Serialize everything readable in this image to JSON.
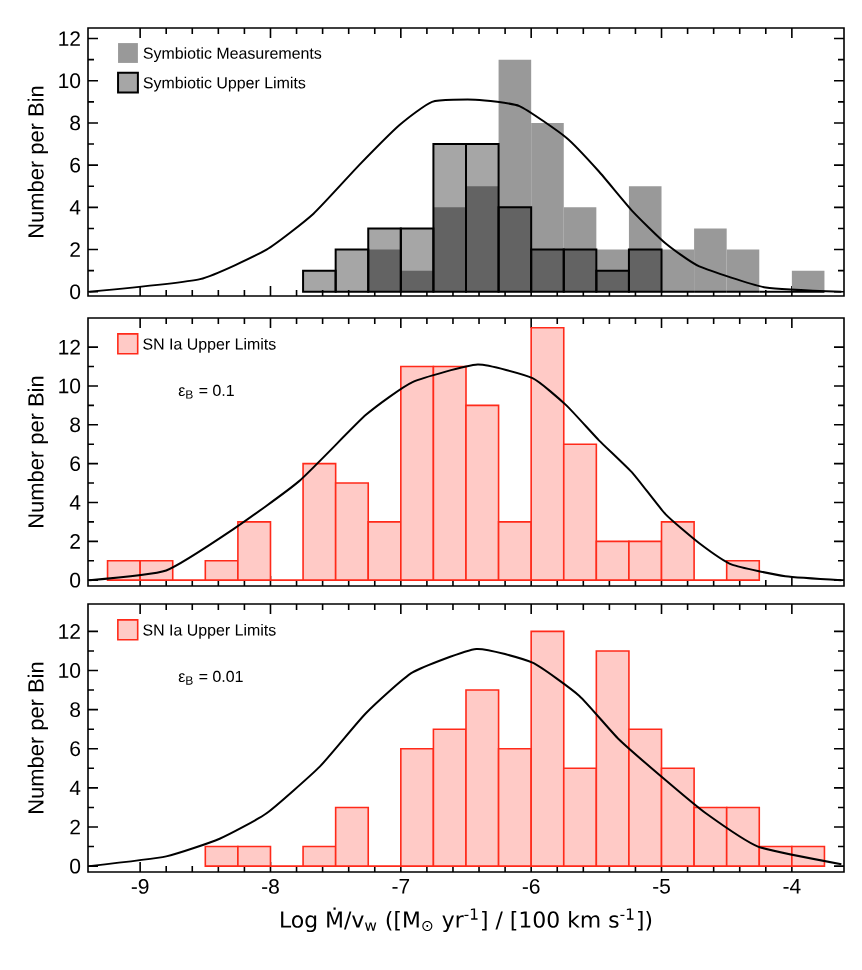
{
  "chart_data": [
    {
      "type": "histogram",
      "ylabel": "Number per Bin",
      "xlim": [
        -9.4,
        -3.6
      ],
      "ylim": [
        -0.2,
        12.5
      ],
      "xticks": [
        -9,
        -8,
        -7,
        -6,
        -5,
        -4
      ],
      "yticks": [
        0,
        2,
        4,
        6,
        8,
        10,
        12
      ],
      "tick_labels": "y",
      "legend": "top left",
      "bins": [
        -7.75,
        -7.5,
        -7.25,
        -7,
        -6.75,
        -6.5,
        -6.25,
        -6,
        -5.75,
        -5.5,
        -5.25,
        -5,
        -4.75,
        -4.5,
        -4.25,
        -4,
        -3.75
      ],
      "series": [
        {
          "name": "Symbiotic Measurements",
          "color": "#999999",
          "values": [
            0,
            0,
            2,
            1,
            4,
            5,
            11,
            8,
            4,
            2,
            5,
            2,
            3,
            2,
            0,
            1
          ]
        },
        {
          "name": "Symbiotic Upper Limits",
          "color": "#000000",
          "values": [
            1,
            2,
            3,
            3,
            7,
            7,
            4,
            2,
            2,
            1,
            2,
            0,
            0,
            0,
            0,
            0
          ]
        },
        {
          "type": "line",
          "color": "#000000",
          "x": [
            -9.39,
            -8.54,
            -8.03,
            -7.67,
            -7.32,
            -7.01,
            -6.76,
            -6.43,
            -6.09,
            -5.73,
            -5.48,
            -5.22,
            -4.97,
            -4.71,
            -4.2,
            -3.62
          ],
          "values": [
            0,
            0.6,
            2,
            3.7,
            6,
            7.9,
            9,
            9.1,
            8.8,
            7.3,
            5.7,
            3.8,
            2.3,
            1.2,
            0.2,
            0
          ]
        }
      ]
    },
    {
      "type": "histogram",
      "ylabel": "Number per Bin",
      "xlim": [
        -9.4,
        -3.6
      ],
      "ylim": [
        -0.3,
        13.5
      ],
      "xticks": [
        -9,
        -8,
        -7,
        -6,
        -5,
        -4
      ],
      "yticks": [
        0,
        2,
        4,
        6,
        8,
        10,
        12
      ],
      "tick_labels": "y",
      "legend": "top left",
      "annotations": [
        "ε$_{B}$ = 0.1"
      ],
      "bins": [
        -9.25,
        -9,
        -8.75,
        -8.5,
        -8.25,
        -8,
        -7.75,
        -7.5,
        -7.25,
        -7,
        -6.75,
        -6.5,
        -6.25,
        -6,
        -5.75,
        -5.5,
        -5.25,
        -5,
        -4.75,
        -4.5,
        -4.25
      ],
      "series": [
        {
          "name": "SN Ia Upper Limits",
          "color": "#ff2a1a",
          "values": [
            1,
            1,
            0,
            1,
            3,
            0,
            6,
            5,
            3,
            11,
            11,
            9,
            3,
            13,
            7,
            2,
            2,
            3,
            0,
            1
          ]
        },
        {
          "type": "line",
          "color": "#000000",
          "x": [
            -9.39,
            -8.8,
            -8.29,
            -7.78,
            -7.27,
            -6.91,
            -6.41,
            -5.99,
            -5.73,
            -5.48,
            -5.22,
            -4.97,
            -4.71,
            -4.46,
            -4.05,
            -3.62
          ],
          "values": [
            0,
            0.5,
            2.6,
            5.1,
            8.5,
            10.2,
            11.1,
            10.4,
            9.0,
            7.2,
            5.5,
            3.4,
            1.9,
            0.8,
            0.2,
            0
          ]
        }
      ]
    },
    {
      "type": "histogram",
      "ylabel": "Number per Bin",
      "xlabel": "Log Ṁ/v$_{w}$  ([M$_{⊙}$ yr$^{-1}$] / [100 km s$^{-1}$])",
      "xlim": [
        -9.4,
        -3.6
      ],
      "ylim": [
        -0.3,
        13.4
      ],
      "xticks": [
        -9,
        -8,
        -7,
        -6,
        -5,
        -4
      ],
      "yticks": [
        0,
        2,
        4,
        6,
        8,
        10,
        12
      ],
      "legend": "top left",
      "annotations": [
        "ε$_{B}$ = 0.01"
      ],
      "bins": [
        -8.5,
        -8.25,
        -8,
        -7.75,
        -7.5,
        -7.25,
        -7,
        -6.75,
        -6.5,
        -6.25,
        -6,
        -5.75,
        -5.5,
        -5.25,
        -5,
        -4.75,
        -4.5,
        -4.25,
        -4,
        -3.75
      ],
      "series": [
        {
          "name": "SN Ia Upper Limits",
          "color": "#ff2a1a",
          "values": [
            1,
            1,
            0,
            1,
            3,
            0,
            6,
            7,
            9,
            6,
            12,
            5,
            11,
            7,
            5,
            3,
            3,
            1,
            1
          ]
        },
        {
          "type": "line",
          "color": "#000000",
          "x": [
            -9.39,
            -8.8,
            -8.39,
            -8.03,
            -7.62,
            -7.27,
            -6.91,
            -6.42,
            -5.99,
            -5.63,
            -5.33,
            -4.97,
            -4.66,
            -4.26,
            -3.62
          ],
          "values": [
            0,
            0.5,
            1.4,
            2.7,
            5.1,
            7.8,
            9.9,
            11.1,
            10.4,
            8.7,
            6.5,
            4.4,
            2.7,
            1.0,
            0.1
          ]
        }
      ]
    }
  ]
}
